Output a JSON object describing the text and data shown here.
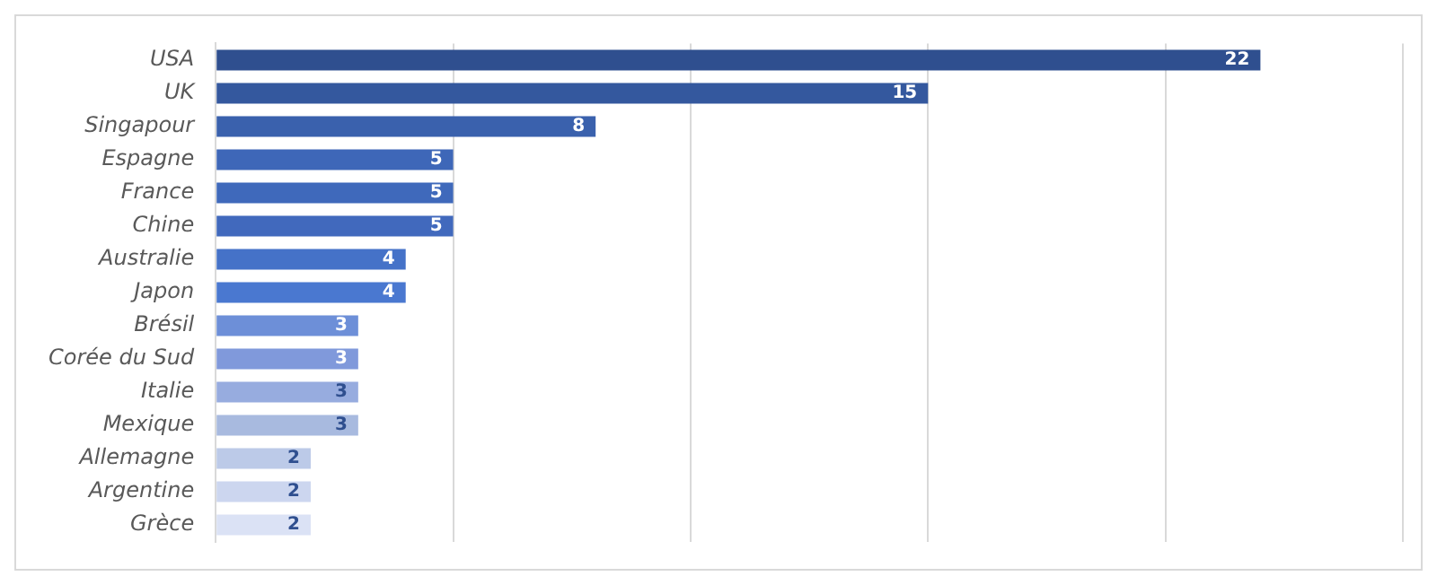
{
  "chart_data": {
    "type": "bar",
    "orientation": "horizontal",
    "categories": [
      "USA",
      "UK",
      "Singapour",
      "Espagne",
      "France",
      "Chine",
      "Australie",
      "Japon",
      "Brésil",
      "Corée du Sud",
      "Italie",
      "Mexique",
      "Allemagne",
      "Argentine",
      "Grèce"
    ],
    "values": [
      22,
      15,
      8,
      5,
      5,
      5,
      4,
      4,
      3,
      3,
      3,
      3,
      2,
      2,
      2
    ],
    "colors": [
      "#2f4f8f",
      "#34589e",
      "#3a61ad",
      "#3e67b8",
      "#3f69bb",
      "#4169bd",
      "#4572c8",
      "#4a78d0",
      "#6d8fd8",
      "#8099db",
      "#97acdf",
      "#a8badf",
      "#bccae8",
      "#ccd6ef",
      "#dbe2f5"
    ],
    "xlim": [
      0,
      25
    ],
    "xticks": [
      {
        "value": 0,
        "label": null
      },
      {
        "value": 5,
        "label": null
      },
      {
        "value": 10,
        "label": null
      },
      {
        "value": 15,
        "label": null
      },
      {
        "value": 20,
        "label": null
      },
      {
        "value": 25,
        "label": null
      }
    ],
    "tick_labels": "y",
    "grid": "x",
    "data_labels": true
  }
}
